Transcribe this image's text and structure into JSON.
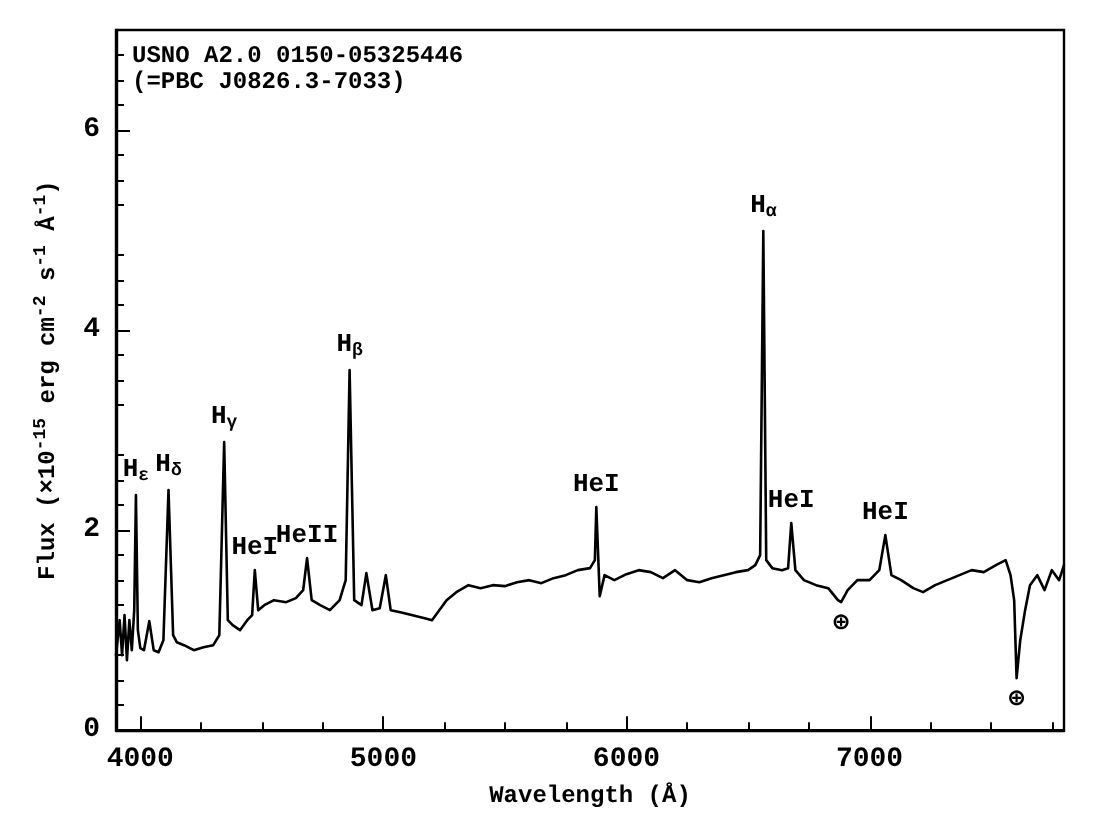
{
  "chart_data": {
    "type": "line",
    "xlabel": "Wavelength (Å)",
    "ylabel": "Flux (×10$^{-15}$ erg cm$^{-2}$ s$^{-1}$ Å$^{-1}$)",
    "xlim": [
      3900,
      7800
    ],
    "xticks": [
      4000,
      5000,
      6000,
      7000
    ],
    "ylim": [
      0,
      7
    ],
    "yticks": [
      0,
      2,
      4,
      6
    ],
    "grid": false,
    "marker": "none",
    "line_style": "solid",
    "series": [
      {
        "color": "#000000",
        "x": [
          3900,
          3915,
          3925,
          3935,
          3945,
          3955,
          3965,
          3975,
          3982,
          3990,
          4000,
          4015,
          4037,
          4055,
          4075,
          4095,
          4116,
          4135,
          4150,
          4180,
          4220,
          4260,
          4300,
          4325,
          4345,
          4360,
          4380,
          4410,
          4440,
          4460,
          4471,
          4485,
          4510,
          4550,
          4600,
          4640,
          4670,
          4686,
          4705,
          4740,
          4780,
          4820,
          4845,
          4861,
          4880,
          4910,
          4930,
          4955,
          4985,
          5010,
          5030,
          5070,
          5120,
          5170,
          5200,
          5230,
          5260,
          5300,
          5350,
          5400,
          5450,
          5500,
          5550,
          5600,
          5650,
          5700,
          5750,
          5800,
          5850,
          5870,
          5876,
          5890,
          5910,
          5950,
          6000,
          6050,
          6100,
          6150,
          6200,
          6250,
          6300,
          6350,
          6400,
          6450,
          6500,
          6530,
          6550,
          6563,
          6575,
          6600,
          6640,
          6665,
          6678,
          6695,
          6730,
          6780,
          6830,
          6870,
          6883,
          6910,
          6950,
          7000,
          7040,
          7065,
          7090,
          7130,
          7180,
          7220,
          7270,
          7320,
          7370,
          7420,
          7470,
          7520,
          7560,
          7580,
          7595,
          7605,
          7620,
          7640,
          7660,
          7690,
          7720,
          7750,
          7780,
          7800
        ],
        "values": [
          0.75,
          1.1,
          0.75,
          1.15,
          0.7,
          1.1,
          0.8,
          1.2,
          2.35,
          1.0,
          0.82,
          0.8,
          1.09,
          0.8,
          0.78,
          0.9,
          2.4,
          0.95,
          0.88,
          0.85,
          0.8,
          0.83,
          0.85,
          0.95,
          2.88,
          1.1,
          1.05,
          1.0,
          1.1,
          1.15,
          1.6,
          1.2,
          1.25,
          1.3,
          1.28,
          1.32,
          1.4,
          1.72,
          1.3,
          1.25,
          1.2,
          1.3,
          1.5,
          3.6,
          1.3,
          1.25,
          1.57,
          1.2,
          1.22,
          1.55,
          1.2,
          1.18,
          1.15,
          1.12,
          1.1,
          1.2,
          1.3,
          1.38,
          1.45,
          1.42,
          1.45,
          1.44,
          1.48,
          1.5,
          1.47,
          1.52,
          1.55,
          1.6,
          1.62,
          1.7,
          2.23,
          1.34,
          1.55,
          1.5,
          1.56,
          1.6,
          1.58,
          1.52,
          1.6,
          1.5,
          1.48,
          1.52,
          1.55,
          1.58,
          1.6,
          1.65,
          1.75,
          4.99,
          1.7,
          1.62,
          1.6,
          1.62,
          2.07,
          1.6,
          1.5,
          1.45,
          1.42,
          1.3,
          1.28,
          1.4,
          1.5,
          1.5,
          1.6,
          1.95,
          1.55,
          1.5,
          1.42,
          1.38,
          1.45,
          1.5,
          1.55,
          1.6,
          1.58,
          1.65,
          1.7,
          1.55,
          1.3,
          0.52,
          0.9,
          1.2,
          1.45,
          1.55,
          1.4,
          1.6,
          1.5,
          1.65
        ]
      }
    ],
    "annotations": [
      "USNO A2.0 0150-05325446",
      "(=PBC J0826.3-7033)",
      {
        "text": "H$_{ε}$",
        "x": 3982,
        "y": 2.35
      },
      {
        "text": "H$_{δ}$",
        "x": 4116,
        "y": 2.4
      },
      {
        "text": "H$_{γ}$",
        "x": 4345,
        "y": 2.88
      },
      {
        "text": "HeI",
        "x": 4471,
        "y": 1.6
      },
      {
        "text": "HeII",
        "x": 4686,
        "y": 1.72
      },
      {
        "text": "H$_{β}$",
        "x": 4861,
        "y": 3.6
      },
      {
        "text": "HeI",
        "x": 5876,
        "y": 2.23
      },
      {
        "text": "H$_{α}$",
        "x": 6563,
        "y": 4.99
      },
      {
        "text": "HeI",
        "x": 6678,
        "y": 2.07
      },
      {
        "text": "HeI",
        "x": 7065,
        "y": 1.95
      },
      {
        "text": "⊕",
        "x": 6883,
        "y": 1.28
      },
      {
        "text": "⊕",
        "x": 7605,
        "y": 0.52
      }
    ]
  }
}
